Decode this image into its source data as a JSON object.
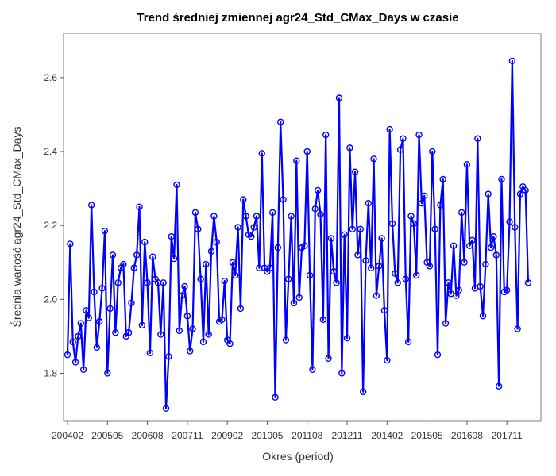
{
  "chart_data": {
    "type": "line",
    "title": "Trend średniej zmiennej agr24_Std_CMax_Days w czasie",
    "xlabel": "Okres (period)",
    "ylabel": "Średnia wartość agr24_Std_CMax_Days",
    "x_tick_labels": [
      "200402",
      "200505",
      "200608",
      "200711",
      "200902",
      "201005",
      "201108",
      "201211",
      "201402",
      "201505",
      "201608",
      "201711"
    ],
    "y_ticks": [
      1.8,
      2.0,
      2.2,
      2.4,
      2.6
    ],
    "y_tick_labels": [
      "1.8",
      "2.0",
      "2.2",
      "2.4",
      "2.6"
    ],
    "ylim": [
      1.67,
      2.72
    ],
    "x_start": "2004-02",
    "x_end": "2018-11",
    "series": [
      {
        "color": "#0000ff",
        "marker": "circle-open",
        "values": [
          1.85,
          2.15,
          1.885,
          1.83,
          1.9,
          1.935,
          1.81,
          1.97,
          1.95,
          2.255,
          2.02,
          1.87,
          1.94,
          2.03,
          2.185,
          1.8,
          1.975,
          2.12,
          1.91,
          2.045,
          2.085,
          2.095,
          1.9,
          1.91,
          1.99,
          2.085,
          2.12,
          2.25,
          1.93,
          2.155,
          2.045,
          1.855,
          2.115,
          2.055,
          2.045,
          1.905,
          2.045,
          1.705,
          1.845,
          2.17,
          2.11,
          2.31,
          1.915,
          2.01,
          2.035,
          1.955,
          1.86,
          1.92,
          2.235,
          2.19,
          2.055,
          1.885,
          2.095,
          1.905,
          2.13,
          2.225,
          2.155,
          1.94,
          1.945,
          2.05,
          1.89,
          1.88,
          2.1,
          2.065,
          2.195,
          1.975,
          2.27,
          2.225,
          2.175,
          2.17,
          2.195,
          2.225,
          2.085,
          2.395,
          2.085,
          2.075,
          2.085,
          2.235,
          1.735,
          2.14,
          2.48,
          2.27,
          1.89,
          2.055,
          2.225,
          1.99,
          2.375,
          2.005,
          2.14,
          2.145,
          2.4,
          2.065,
          1.81,
          2.245,
          2.295,
          2.23,
          1.945,
          2.445,
          1.84,
          2.165,
          2.075,
          2.045,
          2.545,
          1.8,
          2.175,
          1.895,
          2.41,
          2.19,
          2.345,
          2.12,
          2.19,
          1.75,
          2.105,
          2.26,
          2.085,
          2.38,
          2.01,
          2.09,
          2.165,
          1.97,
          1.835,
          2.46,
          2.205,
          2.07,
          2.045,
          2.405,
          2.435,
          2.055,
          1.885,
          2.225,
          2.205,
          2.065,
          2.445,
          2.26,
          2.28,
          2.1,
          2.09,
          2.4,
          2.19,
          1.85,
          2.255,
          2.325,
          1.935,
          2.045,
          2.015,
          2.145,
          2.01,
          2.025,
          2.235,
          2.1,
          2.365,
          2.145,
          2.16,
          2.03,
          2.435,
          2.035,
          1.955,
          2.095,
          2.285,
          2.14,
          2.17,
          2.12,
          1.765,
          2.325,
          2.02,
          2.025,
          2.21,
          2.645,
          2.195,
          1.92,
          2.285,
          2.305,
          2.295,
          2.045
        ]
      }
    ]
  }
}
